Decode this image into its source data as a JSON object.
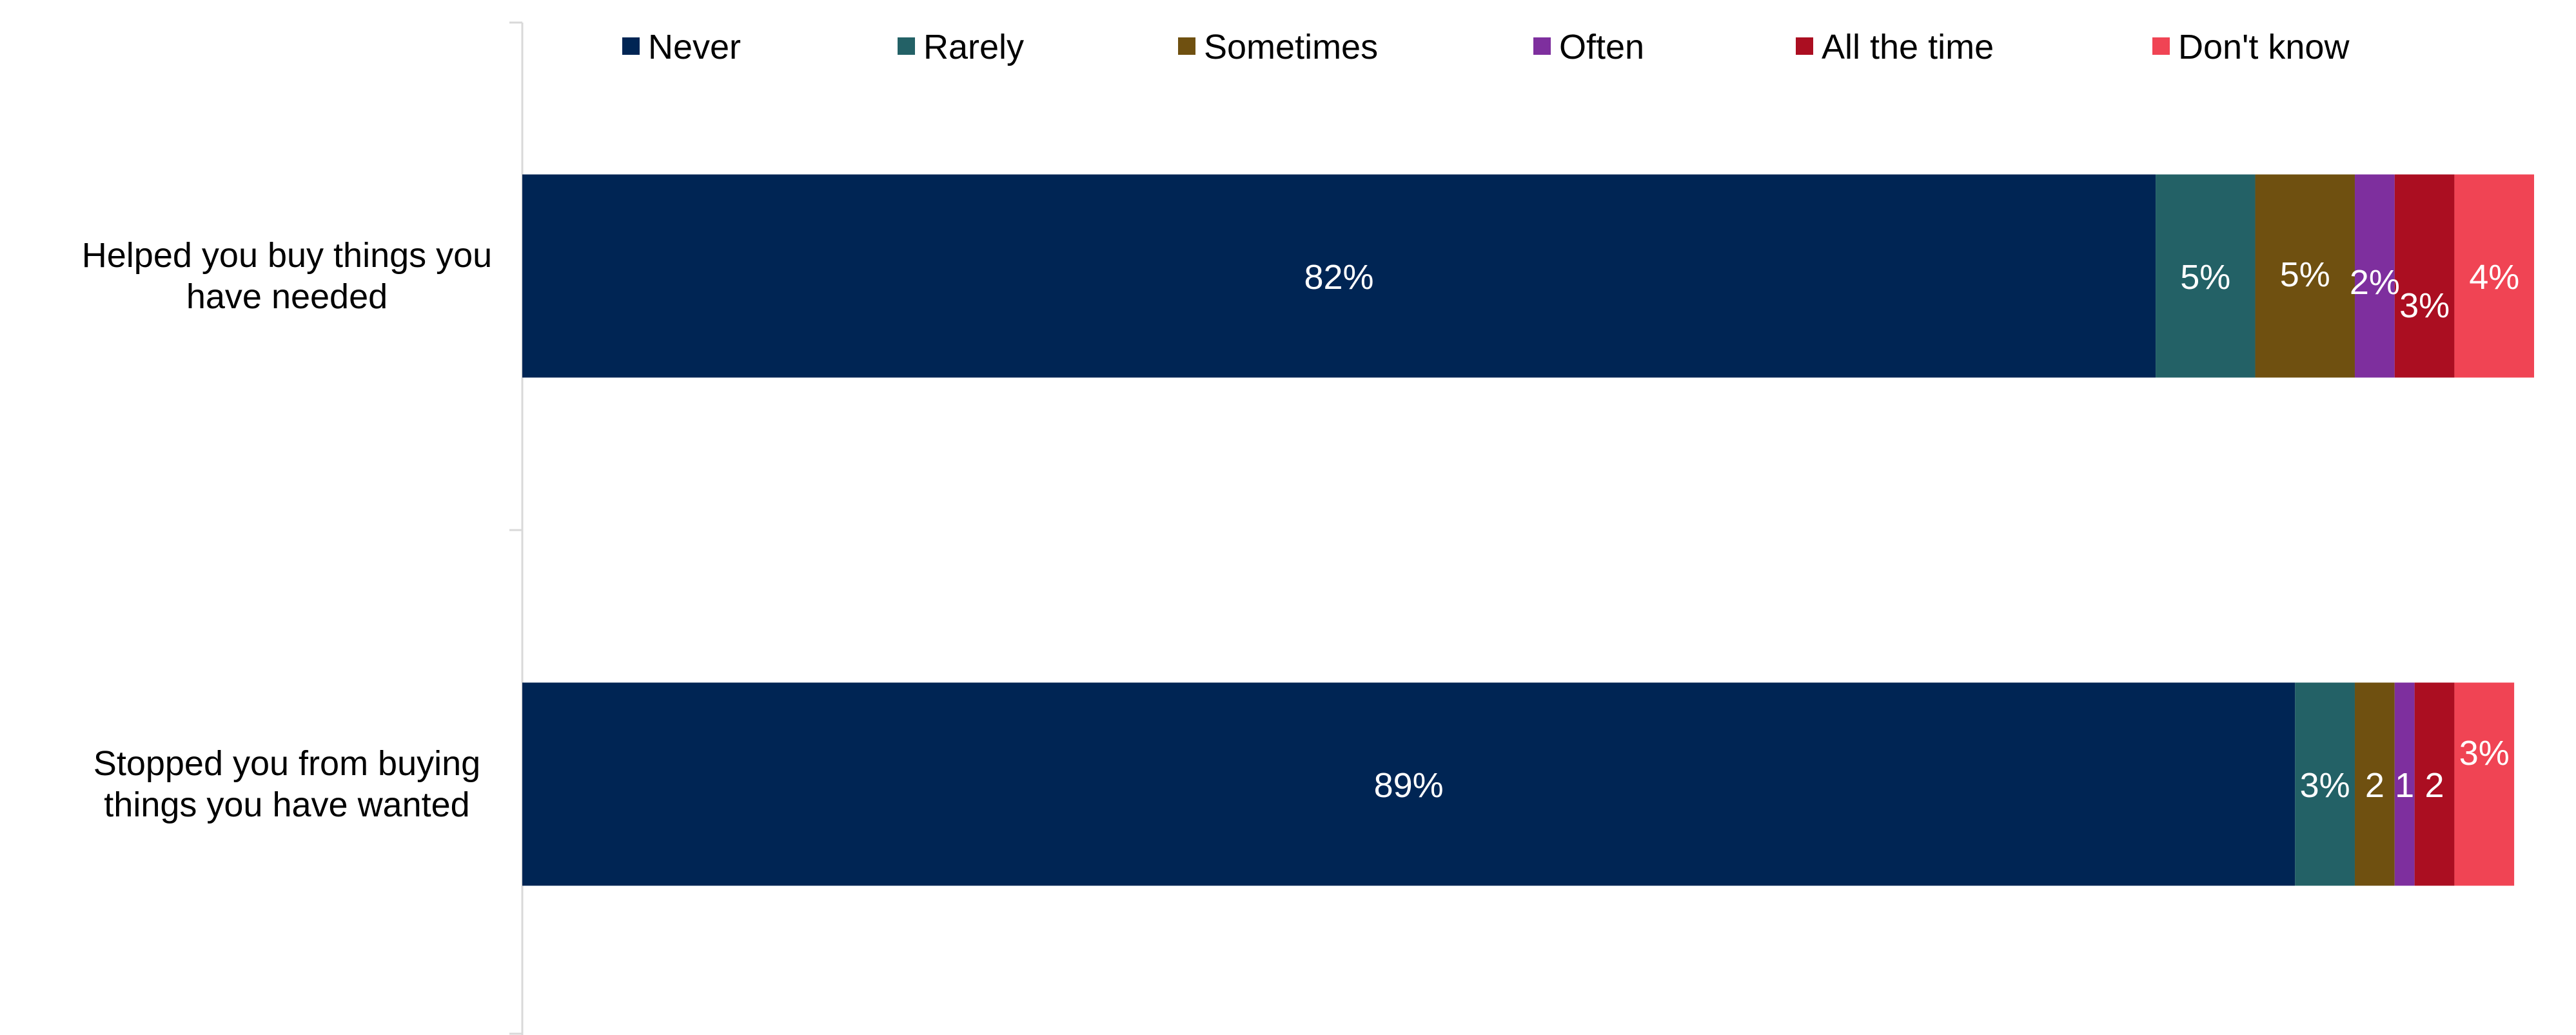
{
  "chart_data": {
    "type": "bar",
    "orientation": "horizontal",
    "stacked": true,
    "categories": [
      [
        "Helped you buy things you",
        "have needed"
      ],
      [
        "Stopped you from buying",
        "things you have wanted"
      ]
    ],
    "series": [
      {
        "name": "Never",
        "color": "#002554",
        "values": [
          82,
          89
        ],
        "labels": [
          "82%",
          "89%"
        ]
      },
      {
        "name": "Rarely",
        "color": "#236166",
        "values": [
          5,
          3
        ],
        "labels": [
          "5%",
          "3%"
        ]
      },
      {
        "name": "Sometimes",
        "color": "#6f5010",
        "values": [
          5,
          2
        ],
        "labels": [
          "5%",
          "2"
        ]
      },
      {
        "name": "Often",
        "color": "#7e2f9e",
        "values": [
          2,
          1
        ],
        "labels": [
          "2%",
          "1"
        ]
      },
      {
        "name": "All the time",
        "color": "#ab0e21",
        "values": [
          3,
          2
        ],
        "labels": [
          "3%",
          "2"
        ]
      },
      {
        "name": "Don't know",
        "color": "#f04454",
        "values": [
          4,
          3
        ],
        "labels": [
          "4%",
          "3%"
        ]
      }
    ],
    "xlim": [
      0,
      101
    ],
    "grid": false,
    "legend_position": "top"
  }
}
